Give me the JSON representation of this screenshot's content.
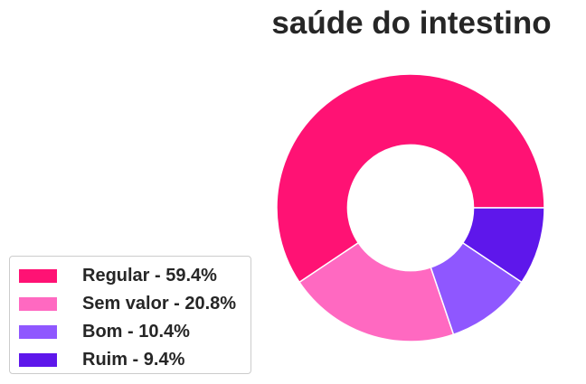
{
  "chart_data": {
    "type": "pie",
    "variant": "donut",
    "title": "saúde do intestino",
    "slices": [
      {
        "label": "Regular",
        "value": 59.4,
        "legend": "Regular - 59.4%",
        "color": "#ff1274"
      },
      {
        "label": "Sem valor",
        "value": 20.8,
        "legend": "Sem valor - 20.8%",
        "color": "#ff69c1"
      },
      {
        "label": "Bom",
        "value": 10.4,
        "legend": "Bom - 10.4%",
        "color": "#8f57ff"
      },
      {
        "label": "Ruim",
        "value": 9.4,
        "legend": "Ruim - 9.4%",
        "color": "#5e17eb"
      }
    ],
    "legend_position": "bottom-left",
    "start_angle_deg": 0,
    "direction": "counterclockwise",
    "hole_fraction": 0.47
  }
}
